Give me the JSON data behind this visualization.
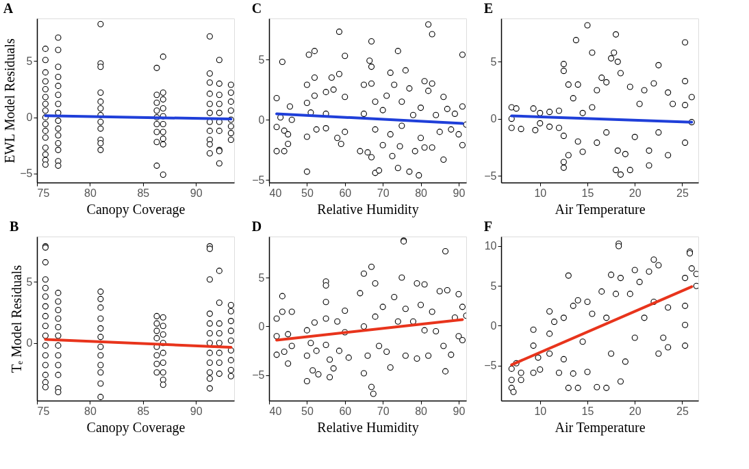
{
  "chart_data": [
    {
      "type": "scatter",
      "title": "A",
      "xlabel": "Canopy Coverage",
      "ylabel": "EWL Model Residuals",
      "xlim": [
        75,
        93.6
      ],
      "ylim": [
        -5.8,
        8.8
      ],
      "xticks": [
        75,
        80,
        85,
        90
      ],
      "yticks": [
        -5,
        0,
        5
      ],
      "grid": false,
      "series": [
        {
          "color": "#000000",
          "marker": "circle",
          "x": [
            75.8,
            75.8,
            75.8,
            75.8,
            75.8,
            75.8,
            75.8,
            75.8,
            75.8,
            75.8,
            75.8,
            75.8,
            75.8,
            75.8,
            75.8,
            75.8,
            77,
            77,
            77,
            77,
            77,
            77,
            77,
            77,
            77,
            77,
            77,
            77,
            77,
            77,
            77,
            81,
            81,
            81,
            81,
            81,
            81,
            81,
            81,
            81,
            81,
            81,
            81,
            86.3,
            86.3,
            86.3,
            86.3,
            86.3,
            86.3,
            86.3,
            86.3,
            86.3,
            86.9,
            86.9,
            86.9,
            86.9,
            86.9,
            86.9,
            86.9,
            86.9,
            86.9,
            86.9,
            91.3,
            91.3,
            91.3,
            91.3,
            91.3,
            91.3,
            91.3,
            91.3,
            91.3,
            91.3,
            91.3,
            92.2,
            92.2,
            92.2,
            92.2,
            92.2,
            92.2,
            92.2,
            92.2,
            92.2,
            92.2,
            93.3,
            93.3,
            93.3,
            93.3,
            93.3,
            93.3,
            93.3,
            93.3
          ],
          "values": [
            6.1,
            5.1,
            4.0,
            3.2,
            2.5,
            1.8,
            1.2,
            0.6,
            0,
            -0.6,
            -1.2,
            -1.8,
            -2.7,
            -3.3,
            -3.8,
            -4.2,
            7.1,
            6.0,
            4.5,
            3.6,
            2.8,
            2.0,
            1.2,
            0.4,
            -0.3,
            -1.0,
            -1.6,
            -2.3,
            -2.9,
            -3.9,
            -4.3,
            8.3,
            4.8,
            4.5,
            2.2,
            1.4,
            0.8,
            0.2,
            -0.4,
            -1.0,
            -2.0,
            -2.3,
            -2.9,
            4.4,
            2.0,
            1.3,
            0.6,
            0,
            -0.6,
            -1.3,
            -2.2,
            -4.3,
            5.4,
            2.2,
            1.6,
            0.8,
            0.1,
            -0.6,
            -1.3,
            -1.9,
            -2.4,
            -5.1,
            7.2,
            3.9,
            3.1,
            2.1,
            1.2,
            0.4,
            -0.4,
            -1.2,
            -2.0,
            -2.4,
            -3.2,
            5.1,
            3.0,
            2.0,
            1.2,
            0.4,
            -0.4,
            -1.2,
            -2.9,
            -3.0,
            -4.1,
            2.9,
            2.2,
            1.4,
            0.6,
            -0.2,
            -0.8,
            -1.4,
            -2.0
          ]
        },
        {
          "type": "line",
          "color": "#1f3fd9",
          "line_style": "solid",
          "marker": "none",
          "x": [
            75.8,
            93.3
          ],
          "values": [
            0.15,
            -0.15
          ]
        }
      ]
    },
    {
      "type": "scatter",
      "title": "C",
      "xlabel": "Relative Humidity",
      "xlim": [
        40,
        92
      ],
      "ylim": [
        -5.2,
        8.4
      ],
      "xticks": [
        40,
        50,
        60,
        70,
        80,
        90
      ],
      "yticks": [
        -5,
        0,
        5
      ],
      "grid": false,
      "series": [
        {
          "color": "#000000",
          "marker": "circle",
          "x": [
            42,
            42,
            42,
            43.5,
            43,
            44,
            44,
            45,
            45,
            45.5,
            46,
            50,
            50,
            50,
            50,
            50.5,
            51,
            52,
            52,
            52,
            52.5,
            55,
            55,
            55,
            56.5,
            57,
            58,
            58.5,
            58.5,
            59,
            60,
            60,
            60,
            64,
            65,
            65,
            66,
            66.5,
            67,
            67,
            67,
            67,
            68,
            68,
            68,
            69,
            70,
            70,
            71,
            72,
            72,
            72.5,
            73,
            74,
            74,
            74.5,
            75,
            75,
            76,
            77,
            77,
            78,
            78.5,
            79.5,
            80,
            80,
            81,
            81,
            82,
            82,
            83,
            83,
            83,
            84,
            85,
            86,
            86,
            87,
            88,
            89,
            90,
            91,
            91,
            91,
            92
          ],
          "values": [
            1.8,
            -0.6,
            -2.6,
            4.8,
            0.2,
            -2.6,
            -0.9,
            -1.2,
            -2.0,
            1.1,
            0,
            2.9,
            1.4,
            -1.4,
            -4.3,
            5.4,
            0.6,
            5.7,
            3.5,
            2.0,
            -0.8,
            2.3,
            0.5,
            -0.7,
            3.5,
            2.5,
            -1.5,
            7.3,
            3.8,
            -2.0,
            5.3,
            1.9,
            -1.0,
            -2.6,
            2.9,
            0.5,
            -2.7,
            4.9,
            6.5,
            4.4,
            3.0,
            -3.1,
            1.5,
            -0.8,
            -4.4,
            -4.2,
            -2.1,
            0.8,
            2.0,
            3.9,
            -1.2,
            -3.0,
            2.9,
            5.7,
            -4.0,
            -2.2,
            1.5,
            -0.5,
            4.1,
            -4.3,
            2.6,
            0.4,
            -2.6,
            -4.6,
            1.0,
            -1.5,
            -2.3,
            3.2,
            7.9,
            2.4,
            7.1,
            3.0,
            -2.3,
            0.4,
            -1.0,
            1.9,
            -3.3,
            0.9,
            -0.8,
            0.5,
            -1.2,
            5.4,
            1.1,
            -2.1,
            -0.4
          ]
        },
        {
          "type": "line",
          "color": "#1f3fd9",
          "line_style": "solid",
          "marker": "none",
          "x": [
            42,
            91
          ],
          "values": [
            0.5,
            -0.3
          ]
        }
      ]
    },
    {
      "type": "scatter",
      "title": "E",
      "xlabel": "Air Temperature",
      "xlim": [
        5.9,
        26.7
      ],
      "ylim": [
        -5.6,
        8.8
      ],
      "xticks": [
        10,
        15,
        20,
        25
      ],
      "yticks": [
        -5,
        0,
        5
      ],
      "grid": false,
      "series": [
        {
          "color": "#000000",
          "marker": "circle",
          "x": [
            7,
            7,
            7,
            7.5,
            8,
            9.3,
            9.5,
            10,
            10,
            11,
            11,
            12,
            12,
            12.5,
            12.5,
            12.5,
            12.5,
            12.5,
            13,
            13,
            13.5,
            13.8,
            14,
            14,
            14.5,
            15,
            14.5,
            15.5,
            15.5,
            16,
            16,
            16.5,
            17,
            17,
            17.5,
            17.8,
            18,
            18,
            18.2,
            18.5,
            18.2,
            18.5,
            19,
            19.5,
            19.5,
            20,
            20.5,
            21,
            21.5,
            21.5,
            22,
            22.5,
            22.5,
            23.5,
            23.5,
            24,
            25.3,
            25.3,
            25.3,
            25.3,
            26,
            26
          ],
          "values": [
            1.0,
            0,
            -0.8,
            0.9,
            -0.9,
            0.9,
            -1.0,
            0.5,
            -0.4,
            0.6,
            -0.7,
            0.7,
            -0.8,
            -1.5,
            4.8,
            4.2,
            -3.8,
            -4.3,
            3.0,
            -3.2,
            1.8,
            6.9,
            3.0,
            -2.0,
            0.5,
            8.2,
            -2.9,
            5.8,
            1.0,
            -2.1,
            2.5,
            3.6,
            -1.2,
            3.2,
            5.3,
            5.8,
            7.4,
            -4.5,
            5.0,
            -4.9,
            -2.8,
            4.0,
            -3.1,
            -4.5,
            2.8,
            -1.6,
            1.3,
            2.5,
            -2.8,
            -4.1,
            3.1,
            4.7,
            -1.2,
            2.3,
            -3.2,
            1.3,
            6.7,
            3.3,
            1.2,
            -2.1,
            1.9,
            -0.3
          ]
        },
        {
          "type": "line",
          "color": "#1f3fd9",
          "line_style": "solid",
          "marker": "none",
          "x": [
            7,
            26
          ],
          "values": [
            0.25,
            -0.3
          ]
        }
      ]
    },
    {
      "type": "scatter",
      "title": "B",
      "xlabel": "Canopy Coverage",
      "ylabel": "Tₑ Model Residuals",
      "xlim": [
        75,
        93.6
      ],
      "ylim": [
        -4.7,
        8.7
      ],
      "xticks": [
        75,
        80,
        85,
        90
      ],
      "yticks": [
        0,
        5
      ],
      "grid": false,
      "series": [
        {
          "color": "#000000",
          "marker": "circle",
          "x": [
            75.8,
            75.8,
            75.8,
            75.8,
            75.8,
            75.8,
            75.8,
            75.8,
            75.8,
            75.8,
            75.8,
            75.8,
            75.8,
            75.8,
            75.8,
            75.8,
            77,
            77,
            77,
            77,
            77,
            77,
            77,
            77,
            77,
            77,
            77,
            77,
            81,
            81,
            81,
            81,
            81,
            81,
            81,
            81,
            81,
            81,
            81,
            81,
            86.3,
            86.3,
            86.3,
            86.3,
            86.3,
            86.3,
            86.3,
            86.3,
            86.9,
            86.9,
            86.9,
            86.9,
            86.9,
            86.9,
            86.9,
            86.9,
            86.9,
            91.3,
            91.3,
            91.3,
            91.3,
            91.3,
            91.3,
            91.3,
            91.3,
            91.3,
            91.3,
            91.3,
            91.3,
            92.2,
            92.2,
            92.2,
            92.2,
            92.2,
            92.2,
            92.2,
            92.2,
            93.3,
            93.3,
            93.3,
            93.3,
            93.3,
            93.3,
            93.3,
            93.3,
            93.3
          ],
          "values": [
            7.9,
            7.8,
            6.6,
            5.2,
            4.5,
            3.8,
            3.0,
            2.2,
            1.4,
            0.6,
            -0.2,
            -1.0,
            -1.8,
            -2.6,
            -3.2,
            -3.6,
            4.1,
            3.4,
            2.7,
            2.0,
            1.3,
            0.6,
            -0.2,
            -1.0,
            -1.8,
            -2.6,
            -3.7,
            -4.0,
            4.2,
            3.6,
            2.9,
            2.0,
            1.2,
            0.5,
            -0.3,
            -1.0,
            -1.8,
            -2.4,
            -3.3,
            -4.4,
            2.2,
            1.6,
            1.0,
            0.4,
            -0.3,
            -1.0,
            -1.7,
            -2.4,
            2.1,
            1.4,
            0.7,
            0,
            -0.8,
            -1.6,
            -2.4,
            -3.0,
            -3.4,
            7.9,
            7.7,
            5.2,
            2.4,
            1.6,
            0.8,
            0,
            -0.8,
            -1.6,
            -2.4,
            -2.9,
            -3.7,
            5.9,
            3.3,
            1.6,
            0.8,
            0,
            -0.8,
            -1.6,
            -2.5,
            3.1,
            2.6,
            1.8,
            1.0,
            0.2,
            -0.6,
            -1.4,
            -2.2,
            -2.7
          ]
        },
        {
          "type": "line",
          "color": "#e8341c",
          "line_style": "solid",
          "marker": "none",
          "x": [
            75.8,
            93.3
          ],
          "values": [
            0.3,
            -0.35
          ]
        }
      ]
    },
    {
      "type": "scatter",
      "title": "D",
      "xlabel": "Relative Humidity",
      "xlim": [
        40,
        92
      ],
      "ylim": [
        -7.6,
        9.2
      ],
      "xticks": [
        40,
        50,
        60,
        70,
        80,
        90
      ],
      "yticks": [
        -5,
        0,
        5
      ],
      "grid": false,
      "series": [
        {
          "color": "#000000",
          "marker": "circle",
          "x": [
            42,
            42,
            42,
            43.5,
            43.5,
            44,
            45,
            45,
            46,
            46,
            50,
            50,
            50,
            51,
            51.5,
            52,
            52.5,
            53,
            55,
            55,
            55,
            55,
            55,
            56,
            56,
            57,
            58,
            58.5,
            60,
            60,
            61,
            64,
            65,
            65,
            65,
            66,
            67,
            67,
            67.5,
            68,
            68,
            69,
            70,
            71,
            72,
            73,
            74,
            75,
            75.5,
            75.5,
            76,
            76,
            78,
            79,
            79,
            80,
            81,
            81,
            82,
            83,
            84,
            85,
            86,
            86.5,
            86.5,
            87,
            88,
            89,
            90,
            90,
            91,
            91,
            92
          ],
          "values": [
            0.8,
            -1.0,
            -2.9,
            3.1,
            1.5,
            -2.6,
            -3.8,
            -0.8,
            1.5,
            -2.0,
            -0.4,
            -3.0,
            -5.6,
            -1.7,
            -4.5,
            0.4,
            -2.5,
            -4.9,
            4.6,
            4.2,
            2.5,
            0.8,
            -1.9,
            -3.4,
            -5.2,
            -4.3,
            0.5,
            -2.5,
            1.6,
            -0.6,
            -3.2,
            3.4,
            5.4,
            0,
            -4.8,
            -3.0,
            6.1,
            -6.2,
            -6.9,
            4.4,
            1.0,
            -2.0,
            2.0,
            -2.6,
            -4.2,
            3.0,
            0.5,
            5.0,
            8.8,
            8.7,
            1.8,
            -3.0,
            0.5,
            4.4,
            -3.3,
            2.2,
            -0.4,
            4.3,
            -3.0,
            1.5,
            -0.5,
            3.6,
            -2.0,
            7.7,
            -4.6,
            3.7,
            -2.9,
            0.9,
            3.3,
            -1.0,
            2.0,
            -1.4,
            1.1
          ]
        },
        {
          "type": "line",
          "color": "#e8341c",
          "line_style": "solid",
          "marker": "none",
          "x": [
            42,
            91
          ],
          "values": [
            -1.4,
            0.7
          ]
        }
      ]
    },
    {
      "type": "scatter",
      "title": "F",
      "xlabel": "Air Temperature",
      "xlim": [
        5.9,
        26.7
      ],
      "ylim": [
        -9.4,
        11.2
      ],
      "xticks": [
        10,
        15,
        20,
        25
      ],
      "yticks": [
        -5,
        0,
        5,
        10
      ],
      "grid": false,
      "series": [
        {
          "color": "#000000",
          "marker": "circle",
          "x": [
            7,
            7,
            7,
            7.2,
            7.5,
            8,
            8,
            9.3,
            9.3,
            9.3,
            9.8,
            10,
            11,
            11,
            11,
            11.5,
            12,
            12.5,
            12.5,
            13,
            13,
            13.5,
            13.5,
            14,
            14,
            14.5,
            15,
            15,
            15.5,
            16,
            16.5,
            17,
            17,
            17.5,
            17.5,
            18,
            18.3,
            18.3,
            18.5,
            18.5,
            19,
            19.5,
            20,
            20,
            20.5,
            21,
            21.5,
            22,
            22,
            22.5,
            22.5,
            23,
            23.5,
            23.5,
            25.3,
            25.3,
            25.3,
            25.3,
            25.8,
            25.8,
            26,
            26.5,
            26.5
          ],
          "values": [
            -5.4,
            -6.8,
            -7.8,
            -8.3,
            -4.7,
            -5.9,
            -6.8,
            -0.5,
            -2.5,
            -5.9,
            -4.0,
            -5.5,
            1.8,
            -1.0,
            -3.5,
            0.5,
            -5.9,
            1.0,
            -4.2,
            6.3,
            -7.8,
            2.5,
            -6.0,
            3.2,
            -7.8,
            -2.0,
            3.0,
            -5.8,
            1.5,
            -7.7,
            4.3,
            -7.8,
            1.0,
            6.4,
            -3.5,
            4.0,
            10.3,
            10.0,
            -7.0,
            6.0,
            -4.5,
            4.0,
            7.0,
            -1.5,
            5.5,
            1.0,
            6.8,
            8.3,
            3.0,
            7.6,
            -3.5,
            -1.5,
            2.3,
            -2.7,
            6.0,
            2.5,
            -2.5,
            0.1,
            9.3,
            9.1,
            7.2,
            6.5,
            5.0
          ]
        },
        {
          "type": "line",
          "color": "#e8341c",
          "line_style": "solid",
          "marker": "none",
          "x": [
            7,
            26
          ],
          "values": [
            -4.9,
            4.9
          ]
        }
      ]
    }
  ]
}
